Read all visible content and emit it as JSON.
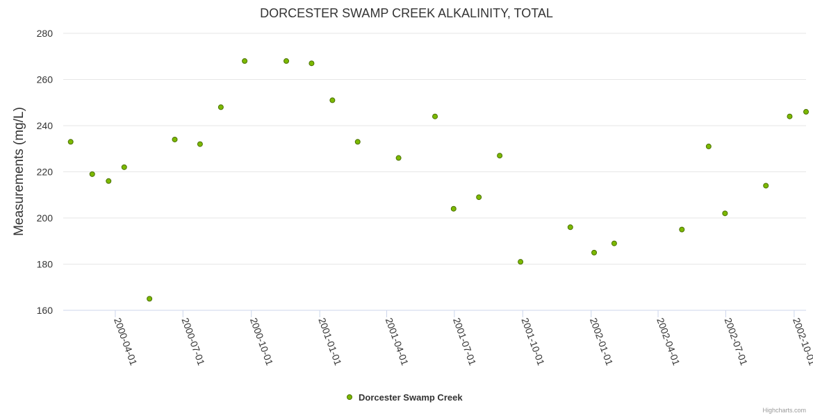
{
  "chart_data": {
    "type": "scatter",
    "title": "DORCESTER SWAMP CREEK ALKALINITY, TOTAL",
    "xlabel": "",
    "ylabel": "Measurements (mg/L)",
    "ylim": [
      160,
      280
    ],
    "yticks": [
      160,
      180,
      200,
      220,
      240,
      260,
      280
    ],
    "xlim": [
      "2000-01-22",
      "2002-10-17"
    ],
    "xticks": [
      "2000-04-01",
      "2000-07-01",
      "2000-10-01",
      "2001-01-01",
      "2001-04-01",
      "2001-07-01",
      "2001-10-01",
      "2002-01-01",
      "2002-04-01",
      "2002-07-01",
      "2002-10-01"
    ],
    "grid": "horizontal",
    "legend_position": "bottom-center",
    "colors": {
      "marker_fill": "#7cb900",
      "marker_stroke": "#4a7000",
      "grid": "#e6e6e6",
      "axis": "#ccd6eb",
      "text": "#333333"
    },
    "series": [
      {
        "name": "Dorcester Swamp Creek",
        "points": [
          {
            "x": "2000-02-01",
            "y": 233
          },
          {
            "x": "2000-03-01",
            "y": 219
          },
          {
            "x": "2000-03-23",
            "y": 216
          },
          {
            "x": "2000-04-13",
            "y": 222
          },
          {
            "x": "2000-05-17",
            "y": 165
          },
          {
            "x": "2000-06-20",
            "y": 234
          },
          {
            "x": "2000-07-24",
            "y": 232
          },
          {
            "x": "2000-08-21",
            "y": 248
          },
          {
            "x": "2000-09-22",
            "y": 268
          },
          {
            "x": "2000-11-17",
            "y": 268
          },
          {
            "x": "2000-12-21",
            "y": 267
          },
          {
            "x": "2001-01-18",
            "y": 251
          },
          {
            "x": "2001-02-21",
            "y": 233
          },
          {
            "x": "2001-04-17",
            "y": 226
          },
          {
            "x": "2001-06-05",
            "y": 244
          },
          {
            "x": "2001-06-30",
            "y": 204
          },
          {
            "x": "2001-08-03",
            "y": 209
          },
          {
            "x": "2001-08-31",
            "y": 227
          },
          {
            "x": "2001-09-28",
            "y": 181
          },
          {
            "x": "2001-12-04",
            "y": 196
          },
          {
            "x": "2002-01-05",
            "y": 185
          },
          {
            "x": "2002-02-01",
            "y": 189
          },
          {
            "x": "2002-05-03",
            "y": 195
          },
          {
            "x": "2002-06-08",
            "y": 231
          },
          {
            "x": "2002-06-30",
            "y": 202
          },
          {
            "x": "2002-08-24",
            "y": 214
          },
          {
            "x": "2002-09-25",
            "y": 244
          },
          {
            "x": "2002-10-17",
            "y": 246
          }
        ]
      }
    ]
  },
  "credit": "Highcharts.com"
}
